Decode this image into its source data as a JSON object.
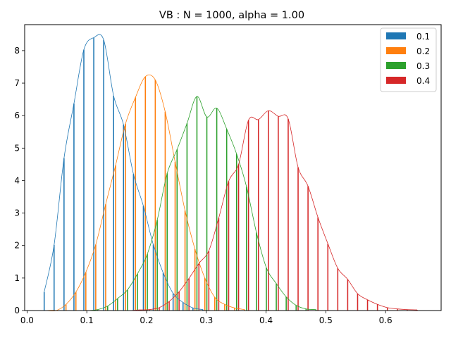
{
  "chart_data": {
    "type": "bar",
    "title": "VB : N = 1000, alpha = 1.00",
    "xlabel": "",
    "ylabel": "",
    "xlim": [
      -0.004,
      0.693
    ],
    "ylim": [
      0,
      8.8
    ],
    "xticks": [
      0.0,
      0.1,
      0.2,
      0.3,
      0.4,
      0.5,
      0.6
    ],
    "xtick_labels": [
      "0.0",
      "0.1",
      "0.2",
      "0.3",
      "0.4",
      "0.5",
      "0.6"
    ],
    "yticks": [
      0,
      1,
      2,
      3,
      4,
      5,
      6,
      7,
      8
    ],
    "ytick_labels": [
      "0",
      "1",
      "2",
      "3",
      "4",
      "5",
      "6",
      "7",
      "8"
    ],
    "grid": false,
    "legend_position": "top-right",
    "bin_start": 0.027,
    "bin_width": 0.0166,
    "series": [
      {
        "name": "0.1",
        "color": "#1f77b4",
        "values": [
          0.57,
          2.02,
          4.69,
          6.37,
          8.03,
          8.4,
          8.33,
          6.61,
          5.72,
          4.2,
          3.22,
          2.03,
          1.16,
          0.53,
          0.25,
          0.08,
          0.03
        ]
      },
      {
        "name": "0.2",
        "color": "#ff7f0e",
        "values": [
          0.0,
          0.0,
          0.19,
          0.57,
          1.18,
          2.03,
          3.27,
          4.47,
          5.75,
          6.56,
          7.2,
          7.1,
          6.12,
          4.58,
          3.08,
          1.89,
          1.0,
          0.41,
          0.19,
          0.08,
          0.03
        ]
      },
      {
        "name": "0.3",
        "color": "#2ca02c",
        "values": [
          0.0,
          0.0,
          0.0,
          0.0,
          0.0,
          0.03,
          0.14,
          0.37,
          0.64,
          1.13,
          1.74,
          2.79,
          4.22,
          4.96,
          5.76,
          6.59,
          5.96,
          6.23,
          5.59,
          4.82,
          3.81,
          2.4,
          1.32,
          0.83,
          0.42,
          0.16,
          0.05,
          0.03
        ]
      },
      {
        "name": "0.4",
        "color": "#d62728",
        "values": [
          0.0,
          0.0,
          0.0,
          0.0,
          0.0,
          0.0,
          0.0,
          0.0,
          0.0,
          0.02,
          0.03,
          0.09,
          0.28,
          0.58,
          0.99,
          1.45,
          1.84,
          2.85,
          3.98,
          4.5,
          5.86,
          5.88,
          6.15,
          5.98,
          5.9,
          4.41,
          3.83,
          2.87,
          2.06,
          1.3,
          0.96,
          0.52,
          0.33,
          0.19,
          0.09,
          0.05,
          0.03,
          0.02
        ]
      }
    ]
  }
}
